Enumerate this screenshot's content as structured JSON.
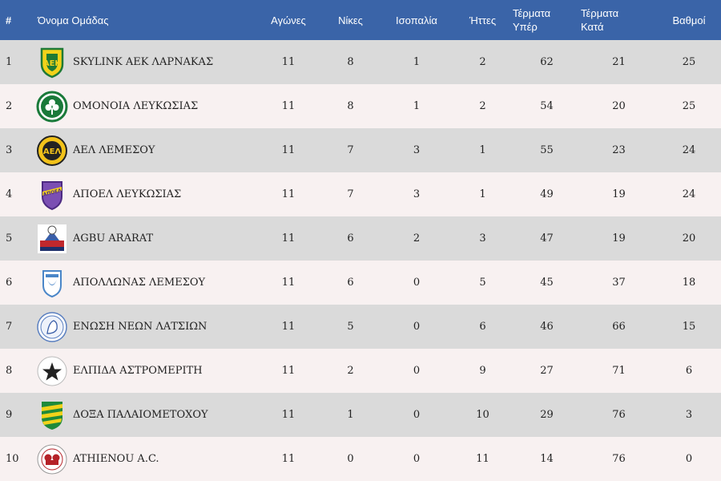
{
  "columns": {
    "position": "#",
    "team": "Όνομα Ομάδας",
    "played": "Αγώνες",
    "wins": "Νίκες",
    "draws": "Ισοπαλία",
    "losses": "Ήττες",
    "goals_for_1": "Τέρματα",
    "goals_for_2": "Υπέρ",
    "goals_against_1": "Τέρματα",
    "goals_against_2": "Κατά",
    "points": "Βαθμοί"
  },
  "colors": {
    "header_bg": "#3a64a8",
    "row_odd": "#dadada",
    "row_even": "#f8f1f1"
  },
  "rows": [
    {
      "pos": "1",
      "team": "SKYLINK ΑΕΚ ΛΑΡΝΑΚΑΣ",
      "logo": "aek-larnaca-logo",
      "played": "11",
      "wins": "8",
      "draws": "1",
      "losses": "2",
      "gf": "62",
      "ga": "21",
      "pts": "25"
    },
    {
      "pos": "2",
      "team": "ΟΜΟΝΟΙΑ ΛΕΥΚΩΣΙΑΣ",
      "logo": "omonoia-logo",
      "played": "11",
      "wins": "8",
      "draws": "1",
      "losses": "2",
      "gf": "54",
      "ga": "20",
      "pts": "25"
    },
    {
      "pos": "3",
      "team": "ΑΕΛ ΛΕΜΕΣΟΥ",
      "logo": "ael-limassol-logo",
      "played": "11",
      "wins": "7",
      "draws": "3",
      "losses": "1",
      "gf": "55",
      "ga": "23",
      "pts": "24"
    },
    {
      "pos": "4",
      "team": "ΑΠΟΕΛ ΛΕΥΚΩΣΙΑΣ",
      "logo": "apoel-logo",
      "played": "11",
      "wins": "7",
      "draws": "3",
      "losses": "1",
      "gf": "49",
      "ga": "19",
      "pts": "24"
    },
    {
      "pos": "5",
      "team": "AGBU ARARAT",
      "logo": "agbu-ararat-logo",
      "played": "11",
      "wins": "6",
      "draws": "2",
      "losses": "3",
      "gf": "47",
      "ga": "19",
      "pts": "20"
    },
    {
      "pos": "6",
      "team": "ΑΠΟΛΛΩΝΑΣ ΛΕΜΕΣΟΥ",
      "logo": "apollon-logo",
      "played": "11",
      "wins": "6",
      "draws": "0",
      "losses": "5",
      "gf": "45",
      "ga": "37",
      "pts": "18"
    },
    {
      "pos": "7",
      "team": "ΕΝΩΣΗ ΝΕΩΝ ΛΑΤΣΙΩΝ",
      "logo": "enosi-latsion-logo",
      "played": "11",
      "wins": "5",
      "draws": "0",
      "losses": "6",
      "gf": "46",
      "ga": "66",
      "pts": "15"
    },
    {
      "pos": "8",
      "team": "ΕΛΠΙΔΑ ΑΣΤΡΟΜΕΡΙΤΗ",
      "logo": "elpida-logo",
      "played": "11",
      "wins": "2",
      "draws": "0",
      "losses": "9",
      "gf": "27",
      "ga": "71",
      "pts": "6"
    },
    {
      "pos": "9",
      "team": "ΔΟΞΑ ΠΑΛΑΙΟΜΕΤΟΧΟΥ",
      "logo": "doxa-logo",
      "played": "11",
      "wins": "1",
      "draws": "0",
      "losses": "10",
      "gf": "29",
      "ga": "76",
      "pts": "3"
    },
    {
      "pos": "10",
      "team": "ATHIENOU A.C.",
      "logo": "athienou-logo",
      "played": "11",
      "wins": "0",
      "draws": "0",
      "losses": "11",
      "gf": "14",
      "ga": "76",
      "pts": "0"
    }
  ]
}
